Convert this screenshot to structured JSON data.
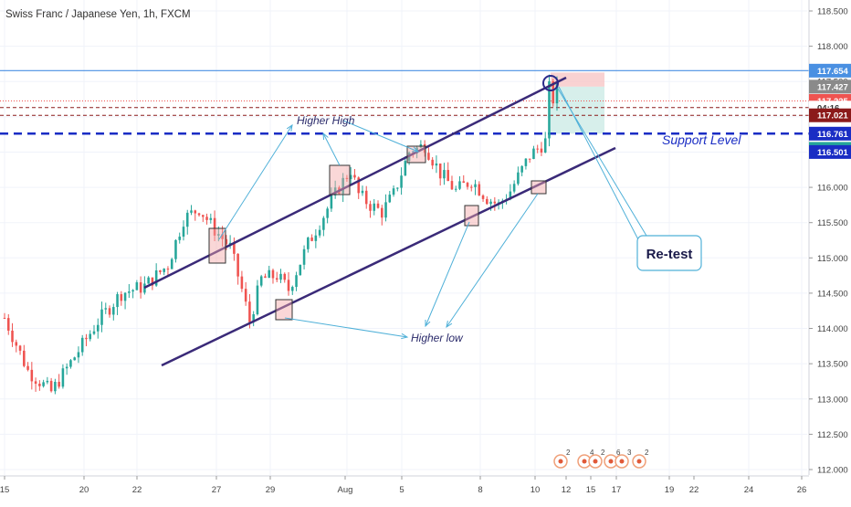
{
  "title": "Swiss Franc / Japanese Yen, 1h, FXCM",
  "colors": {
    "up": "#26a69a",
    "down": "#ef5350",
    "channel": "#3a2a78",
    "support": "#1a2dc4",
    "arrow": "#4fb0d8",
    "level": "#4a90e2",
    "grid": "#f0f3fa"
  },
  "chart_data": {
    "type": "candlestick",
    "title": "Swiss Franc / Japanese Yen, 1h, FXCM",
    "y_axis": {
      "ticks": [
        "118.500",
        "118.000",
        "117.500",
        "117.000",
        "116.500",
        "116.000",
        "115.500",
        "115.000",
        "114.500",
        "114.000",
        "113.500",
        "113.000",
        "112.500",
        "112.000"
      ],
      "ylim": [
        112.0,
        118.5
      ],
      "position": "right"
    },
    "x_axis": {
      "ticks": [
        "15",
        "20",
        "22",
        "27",
        "29",
        "Aug",
        "5",
        "8",
        "10",
        "12",
        "15",
        "17",
        "19",
        "22",
        "24",
        "26"
      ]
    },
    "price_labels": [
      {
        "text": "117.654",
        "value": 117.654,
        "bg": "#4a90e2",
        "fg": "#ffffff"
      },
      {
        "text": "117.427",
        "value": 117.427,
        "bg": "#8a8a8a",
        "fg": "#ffffff"
      },
      {
        "text": "117.225",
        "value": 117.225,
        "bg": "#ef5350",
        "fg": "#ffffff"
      },
      {
        "text": "04:16",
        "value": 117.13,
        "bg": "#ffffff",
        "fg": "#333333"
      },
      {
        "text": "117.021",
        "value": 117.021,
        "bg": "#8b1a1a",
        "fg": "#ffffff"
      },
      {
        "text": "116.761",
        "value": 116.761,
        "bg": "#1a2dc4",
        "fg": "#ffffff"
      },
      {
        "text": "116.546",
        "value": 116.546,
        "bg": "#26a69a",
        "fg": "#ffffff"
      },
      {
        "text": "116.501",
        "value": 116.501,
        "bg": "#1a2dc4",
        "fg": "#ffffff"
      }
    ],
    "annotations": {
      "higher_high": "Higher High",
      "higher_low": "Higher low",
      "support_level": "Support Level",
      "retest": "Re-test"
    },
    "events": [
      {
        "count": "2"
      },
      {
        "count": "4"
      },
      {
        "count": "2"
      },
      {
        "count": "6"
      },
      {
        "count": "3"
      },
      {
        "count": "2"
      }
    ],
    "price_path": [
      [
        0,
        114.15
      ],
      [
        6,
        113.4
      ],
      [
        12,
        113.1
      ],
      [
        18,
        113.6
      ],
      [
        24,
        114.1
      ],
      [
        30,
        114.5
      ],
      [
        36,
        114.6
      ],
      [
        42,
        114.9
      ],
      [
        46,
        115.55
      ],
      [
        50,
        115.7
      ],
      [
        54,
        115.4
      ],
      [
        58,
        115.15
      ],
      [
        61,
        114.55
      ],
      [
        63,
        114.1
      ],
      [
        66,
        114.7
      ],
      [
        70,
        114.75
      ],
      [
        73,
        114.55
      ],
      [
        78,
        115.2
      ],
      [
        82,
        115.6
      ],
      [
        86,
        116.0
      ],
      [
        89,
        116.25
      ],
      [
        91,
        115.9
      ],
      [
        94,
        115.75
      ],
      [
        97,
        115.65
      ],
      [
        100,
        115.9
      ],
      [
        104,
        116.5
      ],
      [
        108,
        116.6
      ],
      [
        112,
        116.2
      ],
      [
        116,
        115.95
      ],
      [
        120,
        116.1
      ],
      [
        124,
        115.85
      ],
      [
        127,
        115.75
      ],
      [
        130,
        115.95
      ],
      [
        135,
        116.45
      ],
      [
        139,
        116.65
      ],
      [
        140,
        117.4
      ],
      [
        141,
        117.25
      ],
      [
        142,
        117.4
      ]
    ]
  }
}
